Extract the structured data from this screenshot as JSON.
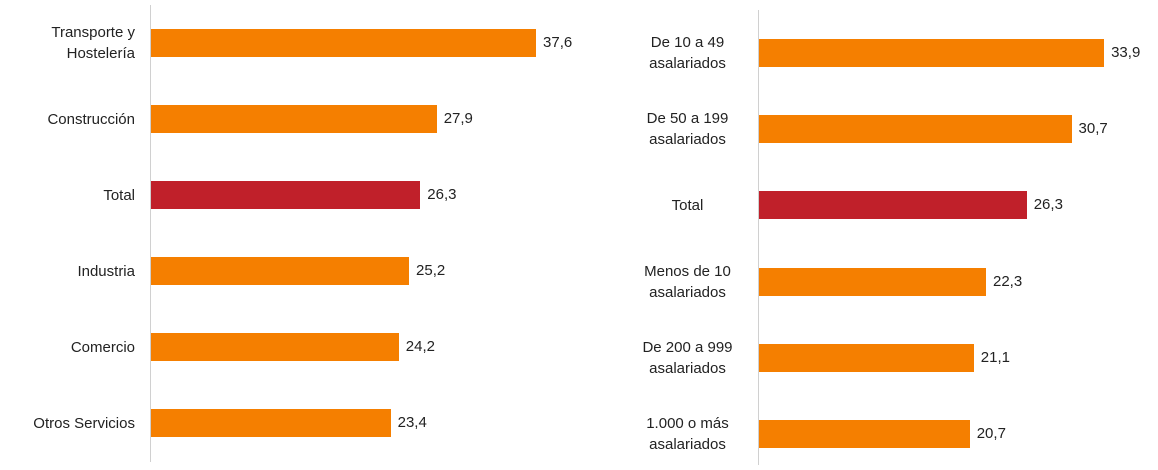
{
  "chart_data": [
    {
      "type": "bar",
      "orientation": "horizontal",
      "categories": [
        "Transporte y Hostelería",
        "Construcción",
        "Total",
        "Industria",
        "Comercio",
        "Otros Servicios"
      ],
      "values": [
        37.6,
        27.9,
        26.3,
        25.2,
        24.2,
        23.4
      ],
      "value_labels": [
        "37,6",
        "27,9",
        "26,3",
        "25,2",
        "24,2",
        "23,4"
      ],
      "colors": [
        "#f57f00",
        "#f57f00",
        "#c0202a",
        "#f57f00",
        "#f57f00",
        "#f57f00"
      ]
    },
    {
      "type": "bar",
      "orientation": "horizontal",
      "categories": [
        "De 10 a 49 asalariados",
        "De 50 a 199 asalariados",
        "Total",
        "Menos de 10 asalariados",
        "De 200 a 999 asalariados",
        "1.000 o más asalariados"
      ],
      "values": [
        33.9,
        30.7,
        26.3,
        22.3,
        21.1,
        20.7
      ],
      "value_labels": [
        "33,9",
        "30,7",
        "26,3",
        "22,3",
        "21,1",
        "20,7"
      ],
      "colors": [
        "#f57f00",
        "#f57f00",
        "#c0202a",
        "#f57f00",
        "#f57f00",
        "#f57f00"
      ]
    }
  ]
}
